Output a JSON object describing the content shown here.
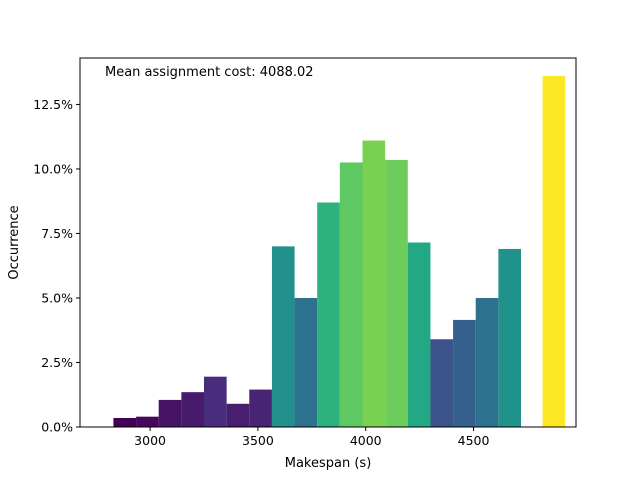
{
  "chart_data": {
    "type": "bar",
    "annotation": "Mean assignment cost: 4088.02",
    "xlabel": "Makespan (s)",
    "ylabel": "Occurrence",
    "xlim": [
      2675,
      4975
    ],
    "ylim": [
      0,
      14.3
    ],
    "x_ticks": [
      3000,
      3500,
      4000,
      4500
    ],
    "x_tick_labels": [
      "3000",
      "3500",
      "4000",
      "4500"
    ],
    "y_ticks": [
      0,
      2.5,
      5,
      7.5,
      10,
      12.5
    ],
    "y_tick_labels": [
      "0.0%",
      "2.5%",
      "5.0%",
      "7.5%",
      "10.0%",
      "12.5%"
    ],
    "bar_width": 105,
    "bars": [
      {
        "x": 2830,
        "value": 0.35,
        "color": "#440154"
      },
      {
        "x": 2935,
        "value": 0.4,
        "color": "#46085c"
      },
      {
        "x": 3040,
        "value": 1.05,
        "color": "#471365"
      },
      {
        "x": 3145,
        "value": 1.35,
        "color": "#481a6c"
      },
      {
        "x": 3250,
        "value": 1.95,
        "color": "#472d7b"
      },
      {
        "x": 3355,
        "value": 0.9,
        "color": "#481f70"
      },
      {
        "x": 3460,
        "value": 1.45,
        "color": "#482475"
      },
      {
        "x": 3565,
        "value": 7.0,
        "color": "#21908d"
      },
      {
        "x": 3670,
        "value": 5.0,
        "color": "#2c728e"
      },
      {
        "x": 3775,
        "value": 8.7,
        "color": "#2db27d"
      },
      {
        "x": 3880,
        "value": 10.25,
        "color": "#5ec962"
      },
      {
        "x": 3985,
        "value": 11.1,
        "color": "#7ad151"
      },
      {
        "x": 4090,
        "value": 10.35,
        "color": "#6ccd5a"
      },
      {
        "x": 4195,
        "value": 7.15,
        "color": "#22a884"
      },
      {
        "x": 4300,
        "value": 3.4,
        "color": "#3b528b"
      },
      {
        "x": 4405,
        "value": 4.15,
        "color": "#355f8d"
      },
      {
        "x": 4510,
        "value": 5.0,
        "color": "#2c728e"
      },
      {
        "x": 4615,
        "value": 6.9,
        "color": "#21918c"
      },
      {
        "x": 4820,
        "value": 13.6,
        "color": "#fde725"
      }
    ]
  }
}
